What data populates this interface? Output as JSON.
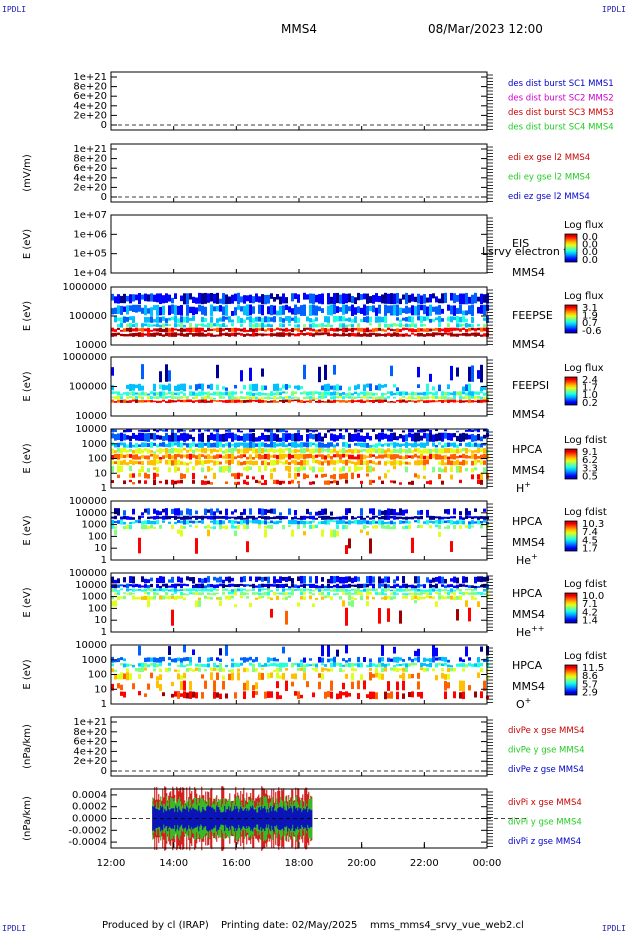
{
  "corner_label": "IPDLI",
  "header": {
    "spacecraft": "MMS4",
    "datetime": "08/Mar/2023 12:00"
  },
  "footer": {
    "produced_by": "Produced by cl (IRAP)",
    "printing_date": "Printing date: 02/May/2025",
    "filename": "mms_mms4_srvy_vue_web2.cl"
  },
  "colors": {
    "c1": "#0000cc",
    "c2": "#cc00cc",
    "c3": "#cc0000",
    "c4": "#22cc22"
  },
  "chart_data": {
    "type": "heatmap",
    "x": {
      "range": [
        "12:00",
        "00:00"
      ],
      "ticks": [
        "12:00",
        "14:00",
        "16:00",
        "18:00",
        "20:00",
        "22:00",
        "00:00"
      ]
    },
    "panels": [
      {
        "id": "des_dist",
        "kind": "line",
        "ylabel": "",
        "ticks": [
          "1e+21",
          "8e+20",
          "6e+20",
          "4e+20",
          "2e+20",
          "0"
        ],
        "legend": [
          {
            "text": "des dist burst SC1 MMS1",
            "color": "#0000cc"
          },
          {
            "text": "des dist burst SC2 MMS2",
            "color": "#cc00cc"
          },
          {
            "text": "des dist burst SC3 MMS3",
            "color": "#cc0000"
          },
          {
            "text": "des dist burst SC4 MMS4",
            "color": "#22cc22"
          }
        ],
        "series": []
      },
      {
        "id": "edi_e",
        "kind": "line",
        "ylabel": "(mV/m)",
        "ticks": [
          "1e+21",
          "8e+20",
          "6e+20",
          "4e+20",
          "2e+20",
          "0"
        ],
        "legend": [
          {
            "text": "edi ex gse l2 MMS4",
            "color": "#cc0000"
          },
          {
            "text": "edi ey gse l2 MMS4",
            "color": "#22cc22"
          },
          {
            "text": "edi ez gse l2 MMS4",
            "color": "#0000cc"
          }
        ],
        "series": []
      },
      {
        "id": "eis",
        "kind": "spectrogram",
        "ylabel": "E (eV)",
        "ticks": [
          "1e+07",
          "1e+06",
          "1e+05",
          "1e+04"
        ],
        "labels": [
          "EIS",
          "MMS4"
        ],
        "overlay": "Lsrvy electron to",
        "cb_title": "Log flux",
        "cb_ticks": [
          "0.0",
          "0.0",
          "0.0",
          "0.0"
        ]
      },
      {
        "id": "feepse",
        "kind": "spectrogram",
        "ylabel": "E (eV)",
        "ticks": [
          "1000000",
          "100000",
          "10000"
        ],
        "labels": [
          "FEEPSE",
          "MMS4"
        ],
        "cb_title": "Log flux",
        "cb_ticks": [
          "3.1",
          "1.9",
          "0.7",
          "-0.6"
        ]
      },
      {
        "id": "feepsi",
        "kind": "spectrogram",
        "ylabel": "E (eV)",
        "ticks": [
          "1000000",
          "100000",
          "10000"
        ],
        "labels": [
          "FEEPSI",
          "MMS4"
        ],
        "cb_title": "Log flux",
        "cb_ticks": [
          "2.4",
          "1.7",
          "1.0",
          "0.2"
        ]
      },
      {
        "id": "hpca_h",
        "kind": "spectrogram",
        "ylabel": "E (eV)",
        "ticks": [
          "10000",
          "1000",
          "100",
          "10",
          "1"
        ],
        "labels": [
          "HPCA",
          "MMS4"
        ],
        "ion": "H",
        "ion_sup": "+",
        "cb_title": "Log fdist",
        "cb_ticks": [
          "9.1",
          "6.2",
          "3.3",
          "0.5"
        ]
      },
      {
        "id": "hpca_he",
        "kind": "spectrogram",
        "ylabel": "E (eV)",
        "ticks": [
          "100000",
          "10000",
          "1000",
          "100",
          "10",
          "1"
        ],
        "labels": [
          "HPCA",
          "MMS4"
        ],
        "ion": "He",
        "ion_sup": "+",
        "cb_title": "Log fdist",
        "cb_ticks": [
          "10.3",
          "7.4",
          "4.5",
          "1.7"
        ]
      },
      {
        "id": "hpca_he2",
        "kind": "spectrogram",
        "ylabel": "E (eV)",
        "ticks": [
          "100000",
          "10000",
          "1000",
          "100",
          "10",
          "1"
        ],
        "labels": [
          "HPCA",
          "MMS4"
        ],
        "ion": "He",
        "ion_sup": "++",
        "cb_title": "Log fdist",
        "cb_ticks": [
          "10.0",
          "7.1",
          "4.2",
          "1.4"
        ]
      },
      {
        "id": "hpca_o",
        "kind": "spectrogram",
        "ylabel": "E (eV)",
        "ticks": [
          "10000",
          "1000",
          "100",
          "10",
          "1"
        ],
        "labels": [
          "HPCA",
          "MMS4"
        ],
        "ion": "O",
        "ion_sup": "+",
        "cb_title": "Log fdist",
        "cb_ticks": [
          "11.5",
          "8.6",
          "5.7",
          "2.9"
        ]
      },
      {
        "id": "divpe",
        "kind": "line",
        "ylabel": "(nPa/km)",
        "ticks": [
          "1e+21",
          "8e+20",
          "6e+20",
          "4e+20",
          "2e+20",
          "0"
        ],
        "legend": [
          {
            "text": "divPe x gse MMS4",
            "color": "#cc0000"
          },
          {
            "text": "divPe y gse MMS4",
            "color": "#22cc22"
          },
          {
            "text": "divPe z gse MMS4",
            "color": "#0000cc"
          }
        ],
        "series": []
      },
      {
        "id": "divpi",
        "kind": "line",
        "ylabel": "(nPa/km)",
        "ticks": [
          "0.0004",
          "0.0002",
          "0.0000",
          "-0.0002",
          "-0.0004"
        ],
        "legend": [
          {
            "text": "divPi x gse MMS4",
            "color": "#cc0000"
          },
          {
            "text": "divPi y gse MMS4",
            "color": "#22cc22"
          },
          {
            "text": "divPi z gse MMS4",
            "color": "#0000cc"
          }
        ],
        "series": [
          {
            "name": "divPi x gse MMS4",
            "color": "#cc0000",
            "time_range": [
              "13:20",
              "18:25"
            ],
            "amplitude": 0.0005
          },
          {
            "name": "divPi y gse MMS4",
            "color": "#22cc22",
            "time_range": [
              "13:20",
              "18:25"
            ],
            "amplitude": 0.00035
          },
          {
            "name": "divPi z gse MMS4",
            "color": "#0000cc",
            "time_range": [
              "13:20",
              "18:25"
            ],
            "amplitude": 0.0002
          }
        ]
      }
    ]
  }
}
